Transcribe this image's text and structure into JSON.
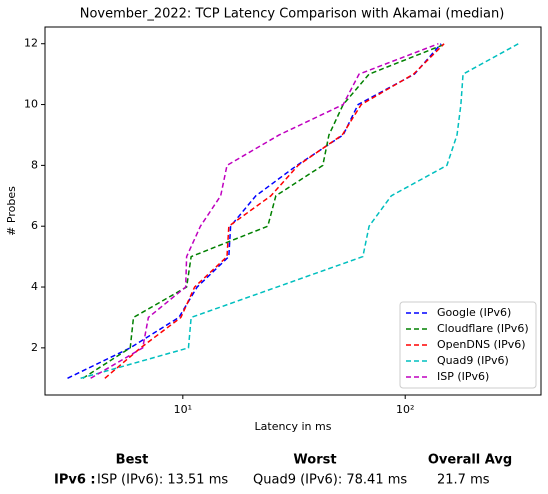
{
  "chart_data": {
    "type": "line",
    "title": "November_2022: TCP Latency Comparison with Akamai (median)",
    "xlabel": "Latency in ms",
    "ylabel": "# Probes",
    "xscale": "log",
    "xlim": [
      2.4,
      408
    ],
    "xticks": [
      {
        "value": 10,
        "label": "10¹"
      },
      {
        "value": 100,
        "label": "10²"
      }
    ],
    "ylim": [
      0.45,
      12.55
    ],
    "yticks": [
      2,
      4,
      6,
      8,
      10,
      12
    ],
    "legend": "lower right",
    "series": [
      {
        "name": "Google (IPv6)",
        "color": "#0000ff",
        "x": [
          3.03,
          5.8,
          9.6,
          11.6,
          16.1,
          16.4,
          21.3,
          32.6,
          52.6,
          61.4,
          110,
          145
        ],
        "values": [
          1,
          2,
          3,
          4,
          5,
          6,
          7,
          8,
          9,
          10,
          11,
          12
        ]
      },
      {
        "name": "Cloudflare (IPv6)",
        "color": "#008000",
        "x": [
          3.55,
          5.8,
          6.0,
          10.4,
          10.9,
          24.1,
          26.2,
          42.6,
          45.4,
          52.6,
          68.8,
          152.5
        ],
        "values": [
          1,
          2,
          3,
          4,
          5,
          6,
          7,
          8,
          9,
          10,
          11,
          12
        ]
      },
      {
        "name": "OpenDNS (IPv6)",
        "color": "#ff0000",
        "x": [
          4.46,
          6.46,
          9.8,
          11.3,
          15.8,
          16.1,
          24.9,
          33.0,
          52.1,
          63.4,
          109,
          149.6
        ],
        "values": [
          1,
          2,
          3,
          4,
          5,
          6,
          7,
          8,
          9,
          10,
          11,
          12
        ]
      },
      {
        "name": "Quad9 (IPv6)",
        "color": "#00bfbf",
        "x": [
          3.47,
          10.6,
          10.9,
          26.5,
          64.5,
          68.8,
          86.6,
          154,
          171,
          178,
          182,
          323
        ],
        "values": [
          1,
          2,
          3,
          4,
          5,
          6,
          7,
          8,
          9,
          10,
          11,
          12
        ]
      },
      {
        "name": "ISP (IPv6)",
        "color": "#bf00bf",
        "x": [
          3.85,
          6.6,
          7.0,
          10.3,
          10.4,
          12.0,
          14.8,
          15.8,
          27.1,
          52.6,
          62,
          141
        ],
        "values": [
          1,
          2,
          3,
          4,
          5,
          6,
          7,
          8,
          9,
          10,
          11,
          12
        ]
      }
    ]
  },
  "summary": {
    "headers": [
      "Best",
      "Worst",
      "Overall Avg"
    ],
    "row_label": "IPv6 :",
    "best": "ISP (IPv6): 13.51 ms",
    "worst": "Quad9 (IPv6): 78.41 ms",
    "avg": "21.7 ms"
  }
}
